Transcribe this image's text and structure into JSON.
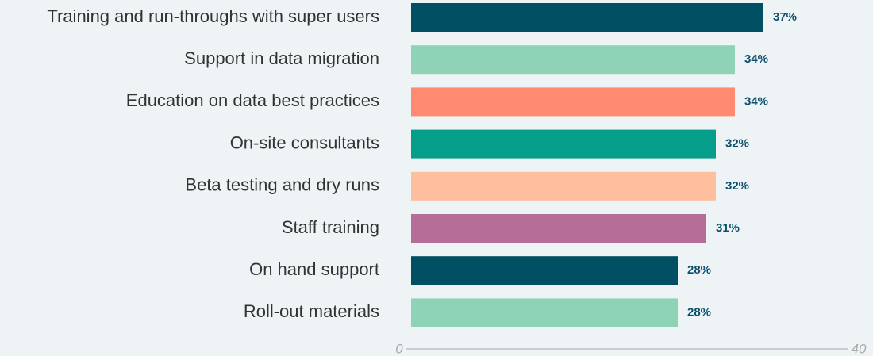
{
  "chart_data": {
    "type": "barh",
    "categories": [
      "Training and run-throughs with super users",
      "Support in data migration",
      "Education on data best practices",
      "On-site consultants",
      "Beta testing and dry runs",
      "Staff training",
      "On hand support",
      "Roll-out materials"
    ],
    "values": [
      37,
      34,
      34,
      32,
      32,
      31,
      28,
      28
    ],
    "value_labels": [
      "37%",
      "34%",
      "34%",
      "32%",
      "32%",
      "31%",
      "28%",
      "28%"
    ],
    "colors": [
      "#004f63",
      "#8fd3b6",
      "#ff8a70",
      "#059e8a",
      "#ffbf9e",
      "#b56e98",
      "#004f63",
      "#8fd3b6"
    ],
    "xlim": [
      0,
      40
    ],
    "xticks": [
      0,
      40
    ]
  }
}
